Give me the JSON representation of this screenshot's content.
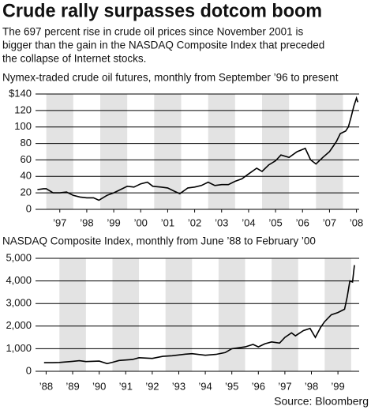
{
  "title": "Crude rally surpasses dotcom boom",
  "subtitle": [
    "The 697 percent rise in crude oil prices since November 2001 is",
    "bigger than the gain in the NASDAQ Composite Index that preceded",
    "the collapse of Internet stocks."
  ],
  "source": "Source: Bloomberg",
  "chart_data": [
    {
      "type": "line",
      "title": "Nymex-traded crude oil futures, monthly from September ’96 to present",
      "color": "#000000",
      "grid": true,
      "x": [
        1996.67,
        1996.9,
        1997.0,
        1997.25,
        1997.5,
        1997.75,
        1998.0,
        1998.25,
        1998.5,
        1998.75,
        1998.95,
        1999.25,
        1999.5,
        1999.75,
        2000.0,
        2000.25,
        2000.5,
        2000.75,
        2000.95,
        2001.25,
        2001.5,
        2001.75,
        2001.95,
        2002.25,
        2002.5,
        2002.75,
        2003.0,
        2003.25,
        2003.5,
        2003.75,
        2004.0,
        2004.25,
        2004.5,
        2004.8,
        2005.0,
        2005.25,
        2005.5,
        2005.7,
        2006.0,
        2006.3,
        2006.6,
        2006.8,
        2007.0,
        2007.25,
        2007.5,
        2007.75,
        2007.9,
        2008.1,
        2008.2,
        2008.3,
        2008.4,
        2008.5,
        2008.55
      ],
      "values": [
        24,
        25,
        25,
        20,
        20,
        21,
        17,
        15,
        14,
        14,
        11,
        17,
        20,
        24,
        28,
        27,
        31,
        33,
        28,
        27,
        26,
        22,
        19,
        26,
        27,
        29,
        33,
        29,
        30,
        30,
        34,
        37,
        43,
        50,
        46,
        54,
        59,
        66,
        63,
        70,
        74,
        60,
        55,
        63,
        70,
        82,
        92,
        95,
        100,
        112,
        125,
        135,
        130
      ],
      "xlim": [
        1996.6,
        2008.6
      ],
      "xticks": [
        {
          "value": 1997.5,
          "label": "’97"
        },
        {
          "value": 1998.5,
          "label": "’98"
        },
        {
          "value": 1999.5,
          "label": "’99"
        },
        {
          "value": 2000.5,
          "label": "’00"
        },
        {
          "value": 2001.5,
          "label": "’01"
        },
        {
          "value": 2002.5,
          "label": "’02"
        },
        {
          "value": 2003.5,
          "label": "’03"
        },
        {
          "value": 2004.5,
          "label": "’04"
        },
        {
          "value": 2005.5,
          "label": "’05"
        },
        {
          "value": 2006.5,
          "label": "’06"
        },
        {
          "value": 2007.5,
          "label": "’07"
        },
        {
          "value": 2008.5,
          "label": "’08"
        }
      ],
      "ylim": [
        0,
        140
      ],
      "yticks": [
        0,
        20,
        40,
        60,
        80,
        100,
        120,
        {
          "value": 140,
          "label": "$140"
        }
      ]
    },
    {
      "type": "line",
      "title": "NASDAQ Composite Index, monthly from June ’88 to February ’00",
      "color": "#000000",
      "grid": true,
      "x": [
        1988.42,
        1988.75,
        1989.0,
        1989.5,
        1989.75,
        1990.0,
        1990.5,
        1990.8,
        1991.0,
        1991.25,
        1991.75,
        1992.0,
        1992.5,
        1992.9,
        1993.25,
        1993.75,
        1994.0,
        1994.5,
        1994.9,
        1995.25,
        1995.5,
        1995.75,
        1996.0,
        1996.3,
        1996.5,
        1996.75,
        1997.0,
        1997.3,
        1997.5,
        1997.75,
        1997.9,
        1998.2,
        1998.45,
        1998.65,
        1998.85,
        1999.0,
        1999.25,
        1999.5,
        1999.75,
        1999.85,
        1999.95,
        2000.05,
        2000.12
      ],
      "values": [
        380,
        380,
        390,
        440,
        470,
        430,
        450,
        340,
        400,
        480,
        520,
        600,
        570,
        660,
        690,
        760,
        780,
        710,
        750,
        830,
        1000,
        1040,
        1080,
        1190,
        1080,
        1220,
        1300,
        1250,
        1500,
        1700,
        1570,
        1800,
        1900,
        1500,
        1950,
        2200,
        2500,
        2600,
        2750,
        3300,
        4000,
        3950,
        4700
      ],
      "xlim": [
        1988.1,
        2000.3
      ],
      "xticks": [
        {
          "value": 1988.5,
          "label": "’88"
        },
        {
          "value": 1989.5,
          "label": "’89"
        },
        {
          "value": 1990.5,
          "label": "’90"
        },
        {
          "value": 1991.5,
          "label": "’91"
        },
        {
          "value": 1992.5,
          "label": "’92"
        },
        {
          "value": 1993.5,
          "label": "’93"
        },
        {
          "value": 1994.5,
          "label": "’94"
        },
        {
          "value": 1995.5,
          "label": "’95"
        },
        {
          "value": 1996.5,
          "label": "’96"
        },
        {
          "value": 1997.5,
          "label": "’97"
        },
        {
          "value": 1998.5,
          "label": "’98"
        },
        {
          "value": 1999.5,
          "label": "’99"
        }
      ],
      "ylim": [
        0,
        5000
      ],
      "yticks": [
        0,
        {
          "value": 1000,
          "label": "1,000"
        },
        {
          "value": 2000,
          "label": "2,000"
        },
        {
          "value": 3000,
          "label": "3,000"
        },
        {
          "value": 4000,
          "label": "4,000"
        },
        {
          "value": 5000,
          "label": "5,000"
        }
      ]
    }
  ]
}
